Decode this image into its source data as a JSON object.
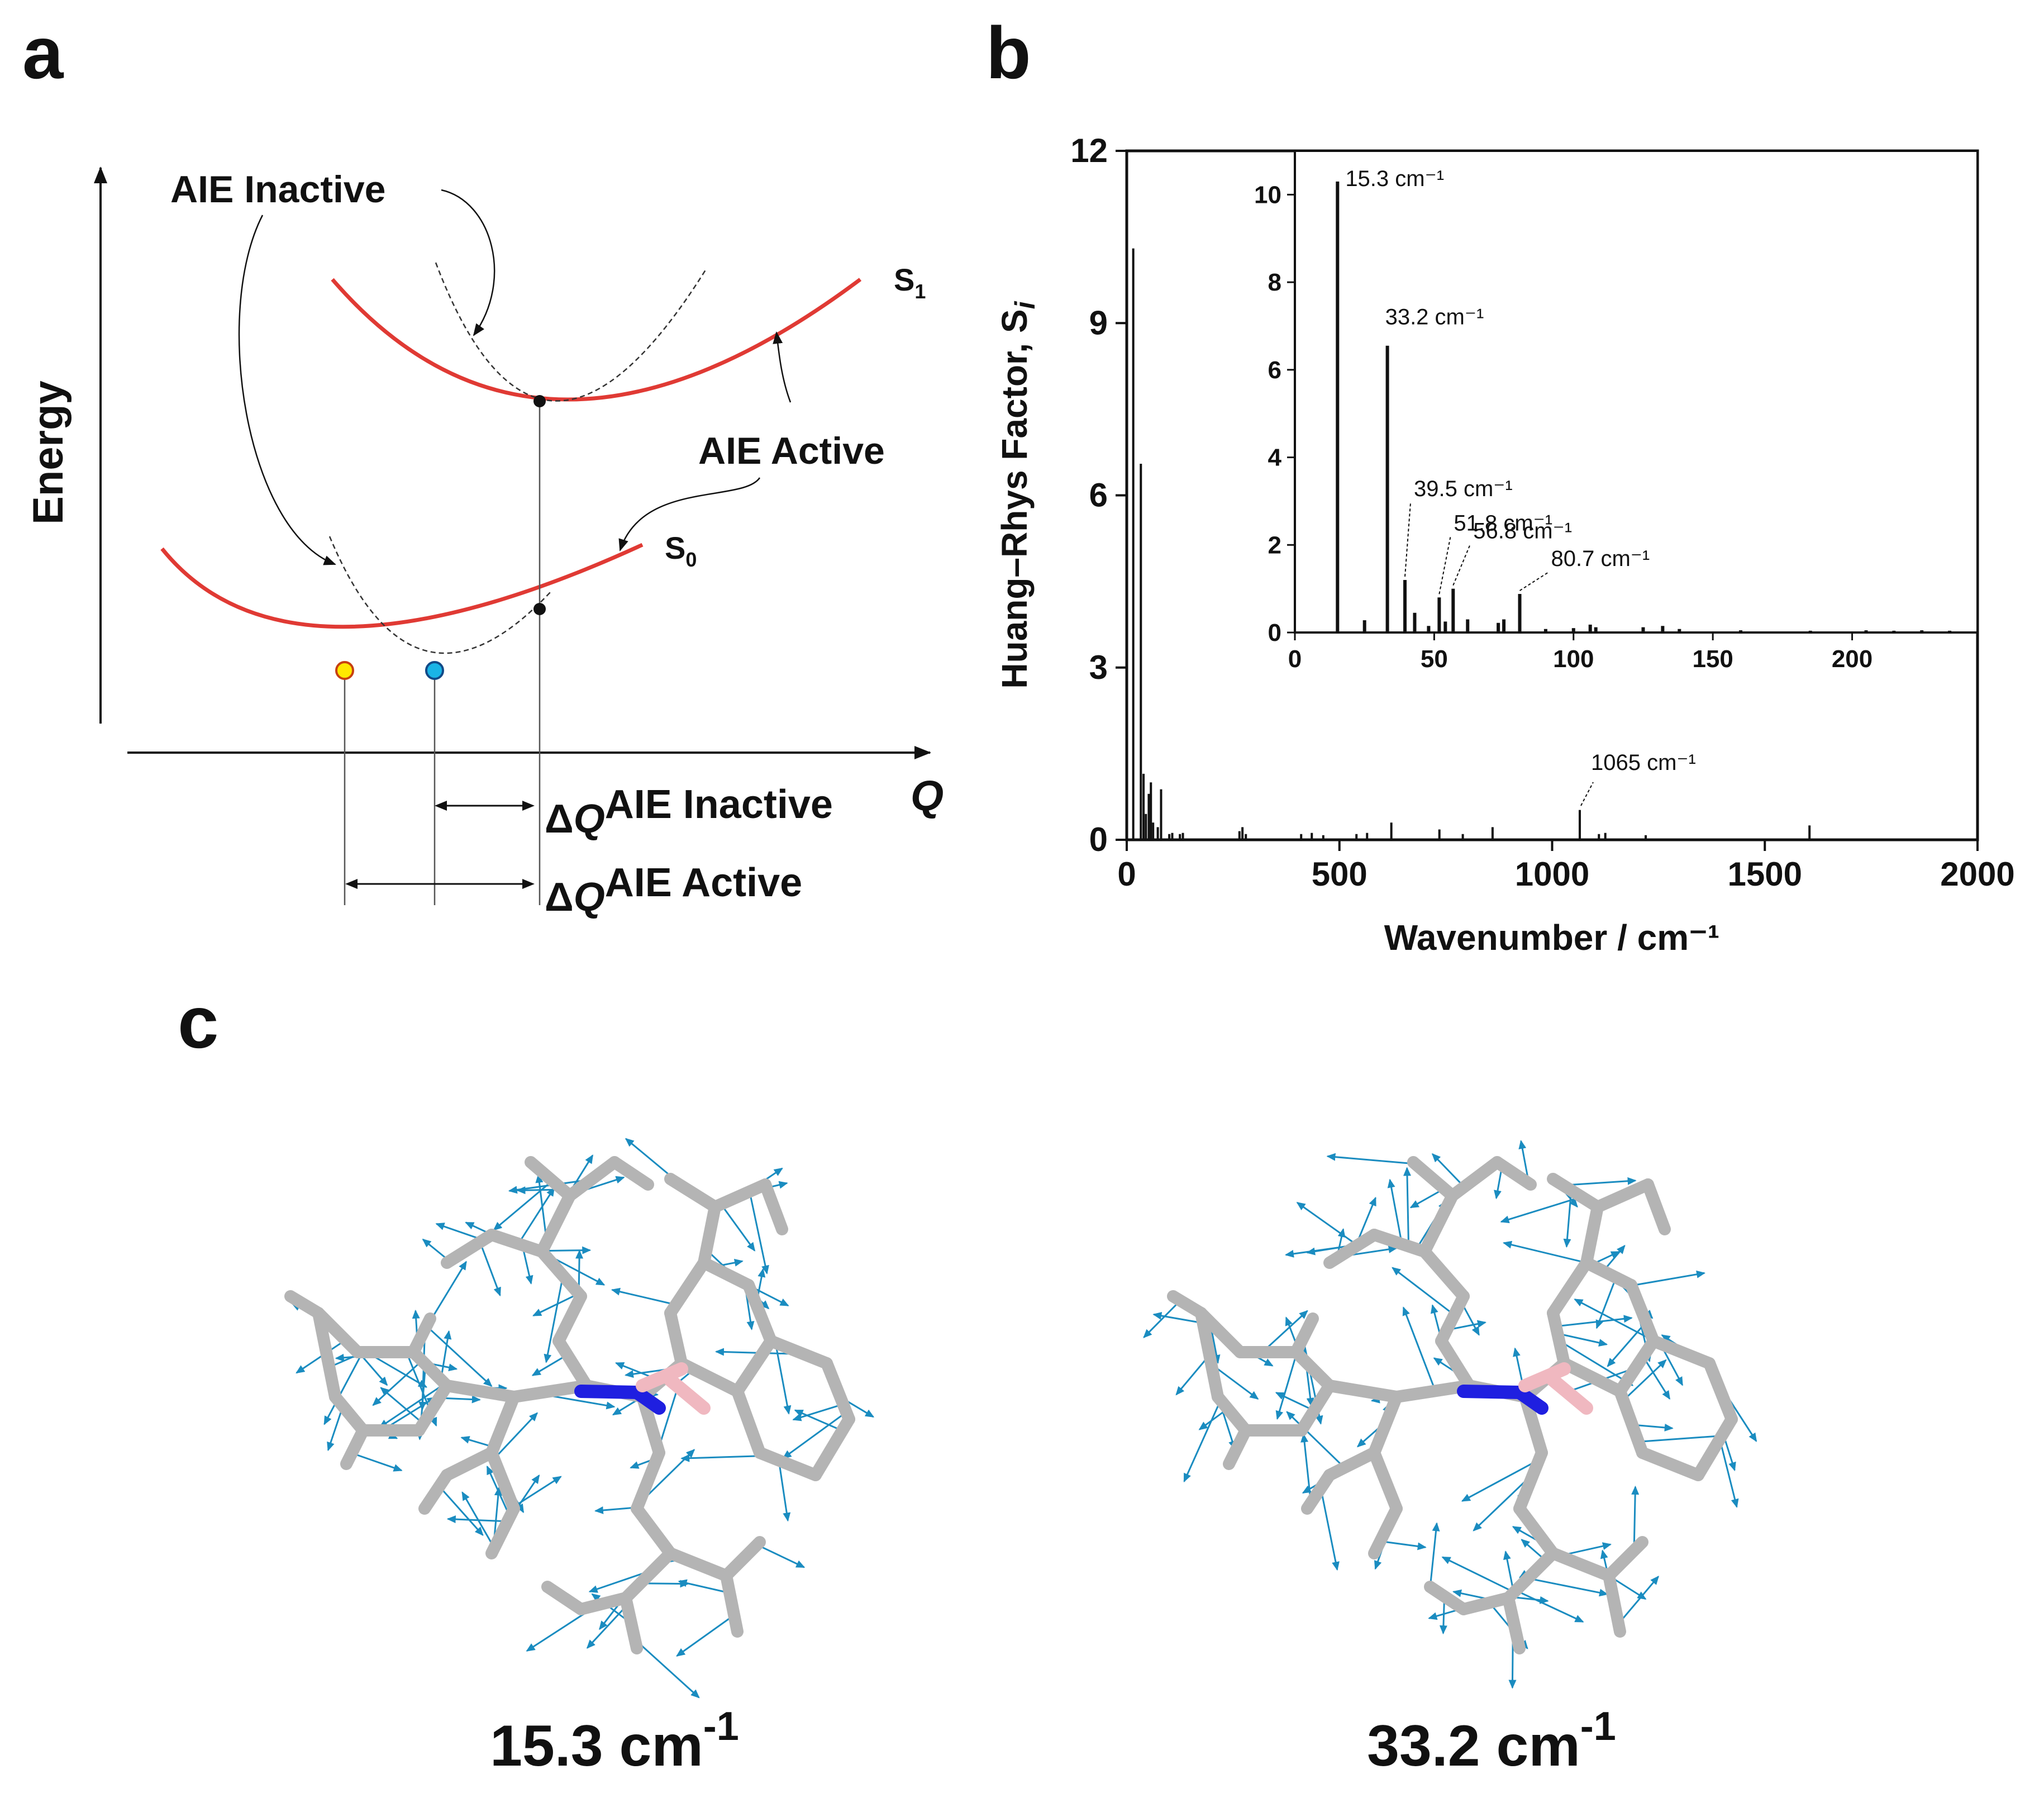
{
  "panels": {
    "a": {
      "letter": "a",
      "energy_label": "Energy",
      "q_label": "Q",
      "aie_inactive": "AIE Inactive",
      "aie_active": "AIE Active",
      "s1_main": "S",
      "s1_sub": "1",
      "s0_main": "S",
      "s0_sub": "0",
      "dq_prefix": "Δ",
      "dq_q": "Q",
      "dq_inactive_sup": "AIE Inactive",
      "dq_active_sup": "AIE Active",
      "curve_color": "#e03a34",
      "point_yellow": "#ffe800",
      "point_blue": "#1ab4e6"
    },
    "b": {
      "letter": "b",
      "peak_label": "1065 cm⁻¹"
    },
    "c": {
      "letter": "c",
      "mode1": "15.3 cm",
      "mode1_sup": "-1",
      "mode2": "33.2 cm",
      "mode2_sup": "-1",
      "arrow_color": "#1a8cc0",
      "bond_color": "#b4b4b4",
      "nitrogen_color": "#1f1fe0",
      "boron_color": "#f0b8c0"
    }
  },
  "chart_data": [
    {
      "type": "bar",
      "title": "",
      "xlabel": "Wavenumber / cm⁻¹",
      "ylabel": "Huang–Rhys Factor, S",
      "ylabel_sub": "i",
      "xlim": [
        0,
        2000
      ],
      "ylim": [
        0,
        12
      ],
      "xticks": [
        "0",
        "500",
        "1000",
        "1500",
        "2000"
      ],
      "yticks": [
        "0",
        "3",
        "6",
        "9",
        "12"
      ],
      "x": [
        15.3,
        33.2,
        39.5,
        45,
        51.8,
        56.8,
        62,
        73,
        80.7,
        100,
        107,
        125,
        132,
        265,
        272,
        280,
        410,
        435,
        462,
        540,
        565,
        622,
        735,
        790,
        860,
        1065,
        1110,
        1125,
        1220,
        1605
      ],
      "values": [
        10.3,
        6.55,
        1.15,
        0.45,
        0.8,
        1.0,
        0.3,
        0.22,
        0.88,
        0.1,
        0.12,
        0.1,
        0.12,
        0.15,
        0.22,
        0.1,
        0.1,
        0.12,
        0.08,
        0.1,
        0.12,
        0.3,
        0.18,
        0.1,
        0.22,
        0.52,
        0.1,
        0.12,
        0.08,
        0.25
      ]
    },
    {
      "type": "bar",
      "title": "",
      "xlabel": "",
      "ylabel": "",
      "xlim": [
        0,
        245
      ],
      "ylim": [
        0,
        11
      ],
      "xticks": [
        "0",
        "50",
        "100",
        "150",
        "200"
      ],
      "yticks": [
        "0",
        "2",
        "4",
        "6",
        "8",
        "10"
      ],
      "x": [
        15.3,
        25,
        33.2,
        39.5,
        43,
        48,
        51.8,
        54,
        56.8,
        62,
        73,
        75,
        80.7,
        90,
        100,
        106,
        108,
        125,
        132,
        138,
        160,
        185,
        205,
        215,
        225,
        235
      ],
      "values": [
        10.3,
        0.28,
        6.55,
        1.2,
        0.45,
        0.15,
        0.8,
        0.25,
        1.0,
        0.3,
        0.22,
        0.3,
        0.88,
        0.08,
        0.1,
        0.18,
        0.12,
        0.12,
        0.15,
        0.08,
        0.05,
        0.04,
        0.05,
        0.04,
        0.05,
        0.04
      ],
      "annotations": [
        {
          "x": 15.3,
          "y": 10.3,
          "label": "15.3 cm⁻¹"
        },
        {
          "x": 33.2,
          "y": 6.55,
          "label": "33.2 cm⁻¹"
        },
        {
          "x": 39.5,
          "y": 1.2,
          "label": "39.5 cm⁻¹"
        },
        {
          "x": 51.8,
          "y": 0.8,
          "label": "51.8 cm⁻¹"
        },
        {
          "x": 56.8,
          "y": 1.0,
          "label": "56.8 cm⁻¹"
        },
        {
          "x": 80.7,
          "y": 0.88,
          "label": "80.7 cm⁻¹"
        }
      ]
    }
  ]
}
